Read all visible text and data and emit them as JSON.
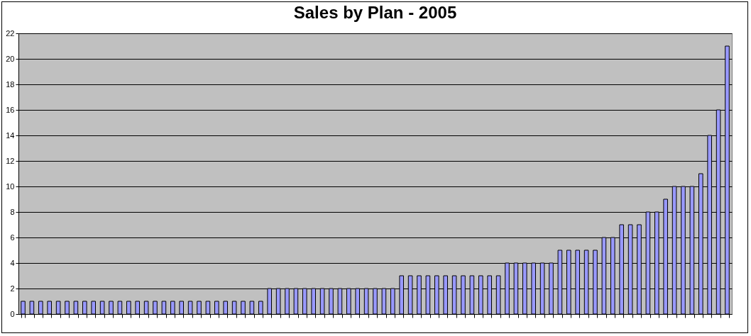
{
  "chart_data": {
    "type": "bar",
    "title": "Sales by Plan - 2005",
    "categories": [
      null,
      null,
      null,
      null,
      null,
      null,
      null,
      null,
      null,
      null,
      null,
      null,
      null,
      null,
      null,
      null,
      null,
      null,
      null,
      null,
      null,
      null,
      null,
      null,
      null,
      null,
      null,
      null,
      null,
      null,
      null,
      null,
      null,
      null,
      null,
      null,
      null,
      null,
      null,
      null,
      null,
      null,
      null,
      null,
      null,
      null,
      null,
      null,
      null,
      null,
      null,
      null,
      null,
      null,
      null,
      null,
      null,
      null,
      null,
      null,
      null,
      null,
      null,
      null,
      null,
      null,
      null,
      null,
      null,
      null,
      null,
      null,
      null,
      null,
      null,
      null,
      null,
      null,
      null,
      null,
      null
    ],
    "values": [
      1,
      1,
      1,
      1,
      1,
      1,
      1,
      1,
      1,
      1,
      1,
      1,
      1,
      1,
      1,
      1,
      1,
      1,
      1,
      1,
      1,
      1,
      1,
      1,
      1,
      1,
      1,
      1,
      2,
      2,
      2,
      2,
      2,
      2,
      2,
      2,
      2,
      2,
      2,
      2,
      2,
      2,
      2,
      3,
      3,
      3,
      3,
      3,
      3,
      3,
      3,
      3,
      3,
      3,
      3,
      4,
      4,
      4,
      4,
      4,
      4,
      5,
      5,
      5,
      5,
      5,
      6,
      6,
      7,
      7,
      7,
      8,
      8,
      9,
      10,
      10,
      10,
      11,
      14,
      16,
      21
    ],
    "color": "#9999ff",
    "ylim": [
      0,
      22
    ],
    "yticks": [
      0,
      2,
      4,
      6,
      8,
      10,
      12,
      14,
      16,
      18,
      20,
      22
    ],
    "grid": "y",
    "tick_labels": "y"
  }
}
